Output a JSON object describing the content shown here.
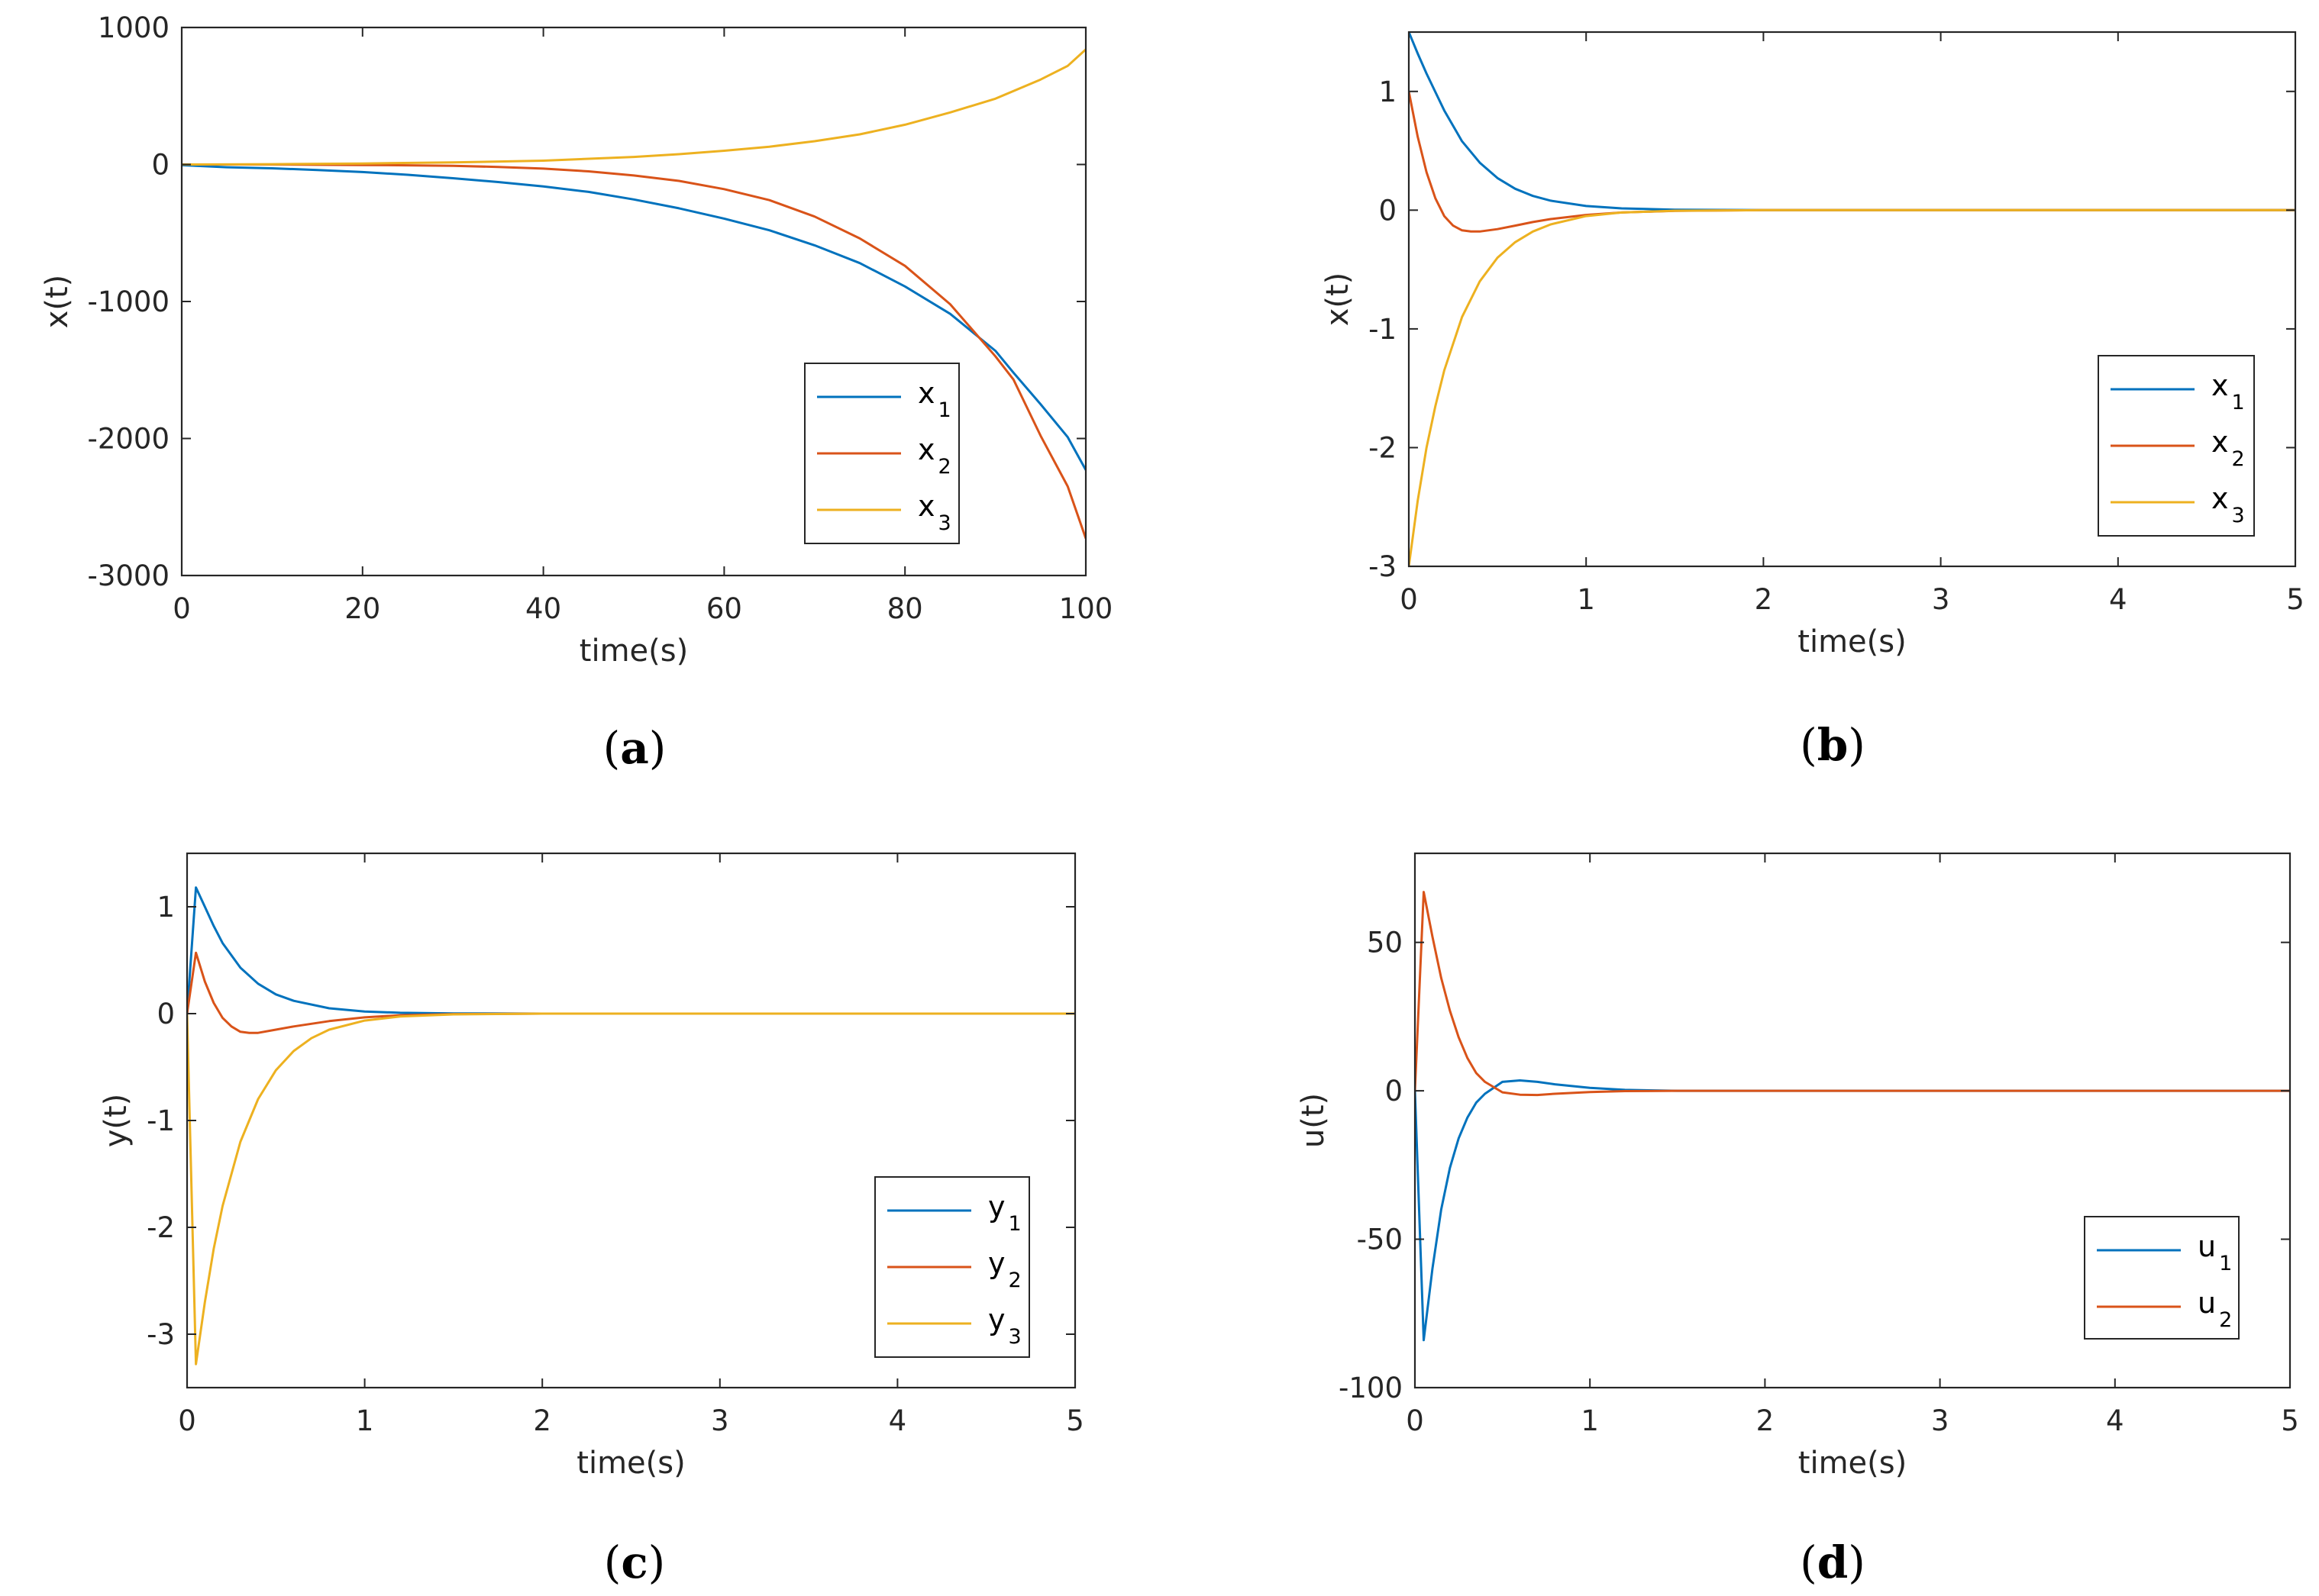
{
  "colors": {
    "series1": "#0072BD",
    "series2": "#D95319",
    "series3": "#EDB120",
    "axis": "#262626"
  },
  "chart_data": [
    {
      "id": "a",
      "type": "line",
      "caption": {
        "open": "(",
        "letter": "a",
        "close": ")"
      },
      "xlabel": "time(s)",
      "ylabel": "x(t)",
      "xlim": [
        0,
        100
      ],
      "ylim": [
        -3000,
        1000
      ],
      "xticks": [
        0,
        20,
        40,
        60,
        80,
        100
      ],
      "xtick_labels": [
        "0",
        "20",
        "40",
        "60",
        "80",
        "100"
      ],
      "yticks": [
        -3000,
        -2000,
        -1000,
        0,
        1000
      ],
      "ytick_labels": [
        "-3000",
        "-2000",
        "-1000",
        "0",
        "1000"
      ],
      "legend_position": "lower-right",
      "series": [
        {
          "name": "x",
          "sub": "1",
          "x": [
            0,
            5,
            10,
            15,
            20,
            25,
            30,
            35,
            40,
            45,
            50,
            55,
            60,
            65,
            70,
            75,
            80,
            85,
            90,
            92,
            95,
            98,
            100
          ],
          "y": [
            -5,
            -20,
            -28,
            -40,
            -55,
            -75,
            -100,
            -128,
            -160,
            -200,
            -255,
            -320,
            -395,
            -480,
            -590,
            -720,
            -890,
            -1090,
            -1360,
            -1520,
            -1750,
            -1990,
            -2230
          ]
        },
        {
          "name": "x",
          "sub": "2",
          "x": [
            0,
            5,
            10,
            15,
            20,
            25,
            30,
            35,
            40,
            45,
            50,
            55,
            60,
            65,
            70,
            75,
            80,
            85,
            90,
            92,
            95,
            98,
            100
          ],
          "y": [
            0,
            0,
            0,
            -2,
            -4,
            -6,
            -10,
            -18,
            -30,
            -50,
            -80,
            -120,
            -180,
            -260,
            -380,
            -540,
            -740,
            -1020,
            -1400,
            -1570,
            -1980,
            -2350,
            -2730
          ]
        },
        {
          "name": "x",
          "sub": "3",
          "x": [
            0,
            10,
            20,
            30,
            40,
            50,
            55,
            60,
            65,
            70,
            75,
            80,
            85,
            90,
            95,
            98,
            100
          ],
          "y": [
            0,
            2,
            7,
            15,
            28,
            55,
            75,
            100,
            130,
            170,
            220,
            290,
            380,
            480,
            620,
            720,
            840
          ]
        }
      ]
    },
    {
      "id": "b",
      "type": "line",
      "caption": {
        "open": "(",
        "letter": "b",
        "close": ")"
      },
      "xlabel": "time(s)",
      "ylabel": "x(t)",
      "xlim": [
        0,
        5
      ],
      "ylim": [
        -3,
        1.5
      ],
      "xticks": [
        0,
        1,
        2,
        3,
        4,
        5
      ],
      "xtick_labels": [
        "0",
        "1",
        "2",
        "3",
        "4",
        "5"
      ],
      "yticks": [
        -3,
        -2,
        -1,
        0,
        1
      ],
      "ytick_labels": [
        "-3",
        "-2",
        "-1",
        "0",
        "1"
      ],
      "legend_position": "lower-right",
      "series": [
        {
          "name": "x",
          "sub": "1",
          "x": [
            0,
            0.05,
            0.1,
            0.2,
            0.3,
            0.4,
            0.5,
            0.6,
            0.7,
            0.8,
            1.0,
            1.2,
            1.5,
            2.0,
            5.0
          ],
          "y": [
            1.5,
            1.32,
            1.15,
            0.84,
            0.58,
            0.4,
            0.27,
            0.18,
            0.12,
            0.08,
            0.035,
            0.015,
            0.004,
            0,
            0
          ]
        },
        {
          "name": "x",
          "sub": "2",
          "x": [
            0,
            0.05,
            0.1,
            0.15,
            0.2,
            0.25,
            0.3,
            0.35,
            0.4,
            0.5,
            0.6,
            0.7,
            0.8,
            1.0,
            1.2,
            1.5,
            2.0,
            5.0
          ],
          "y": [
            1.0,
            0.62,
            0.32,
            0.1,
            -0.05,
            -0.13,
            -0.17,
            -0.18,
            -0.18,
            -0.16,
            -0.13,
            -0.1,
            -0.075,
            -0.04,
            -0.02,
            -0.006,
            0,
            0
          ]
        },
        {
          "name": "x",
          "sub": "3",
          "x": [
            0,
            0.05,
            0.1,
            0.15,
            0.2,
            0.3,
            0.4,
            0.5,
            0.6,
            0.7,
            0.8,
            1.0,
            1.2,
            1.5,
            2.0,
            5.0
          ],
          "y": [
            -3.0,
            -2.45,
            -2.0,
            -1.65,
            -1.35,
            -0.9,
            -0.6,
            -0.4,
            -0.27,
            -0.18,
            -0.12,
            -0.05,
            -0.02,
            -0.005,
            0,
            0
          ]
        }
      ]
    },
    {
      "id": "c",
      "type": "line",
      "caption": {
        "open": "(",
        "letter": "c",
        "close": ")"
      },
      "xlabel": "time(s)",
      "ylabel": "y(t)",
      "xlim": [
        0,
        5
      ],
      "ylim": [
        -3.5,
        1.5
      ],
      "xticks": [
        0,
        1,
        2,
        3,
        4,
        5
      ],
      "xtick_labels": [
        "0",
        "1",
        "2",
        "3",
        "4",
        "5"
      ],
      "yticks": [
        -3,
        -2,
        -1,
        0,
        1
      ],
      "ytick_labels": [
        "-3",
        "-2",
        "-1",
        "0",
        "1"
      ],
      "legend_position": "lower-right",
      "series": [
        {
          "name": "y",
          "sub": "1",
          "x": [
            0,
            0.05,
            0.1,
            0.15,
            0.2,
            0.3,
            0.4,
            0.5,
            0.6,
            0.8,
            1.0,
            1.2,
            1.5,
            2.0,
            5.0
          ],
          "y": [
            0,
            1.18,
            1.0,
            0.82,
            0.66,
            0.43,
            0.28,
            0.18,
            0.12,
            0.05,
            0.02,
            0.008,
            0.002,
            0,
            0
          ]
        },
        {
          "name": "y",
          "sub": "2",
          "x": [
            0,
            0.05,
            0.1,
            0.15,
            0.2,
            0.25,
            0.3,
            0.35,
            0.4,
            0.5,
            0.6,
            0.8,
            1.0,
            1.2,
            1.5,
            2.0,
            5.0
          ],
          "y": [
            0,
            0.57,
            0.3,
            0.1,
            -0.04,
            -0.12,
            -0.17,
            -0.18,
            -0.18,
            -0.15,
            -0.12,
            -0.07,
            -0.035,
            -0.015,
            -0.004,
            0,
            0
          ]
        },
        {
          "name": "y",
          "sub": "3",
          "x": [
            0,
            0.05,
            0.1,
            0.15,
            0.2,
            0.3,
            0.4,
            0.5,
            0.6,
            0.7,
            0.8,
            1.0,
            1.2,
            1.5,
            2.0,
            5.0
          ],
          "y": [
            0,
            -3.28,
            -2.7,
            -2.2,
            -1.8,
            -1.2,
            -0.8,
            -0.53,
            -0.35,
            -0.23,
            -0.15,
            -0.065,
            -0.027,
            -0.007,
            0,
            0
          ]
        }
      ]
    },
    {
      "id": "d",
      "type": "line",
      "caption": {
        "open": "(",
        "letter": "d",
        "close": ")"
      },
      "xlabel": "time(s)",
      "ylabel": "u(t)",
      "xlim": [
        0,
        5
      ],
      "ylim": [
        -100,
        80
      ],
      "xticks": [
        0,
        1,
        2,
        3,
        4,
        5
      ],
      "xtick_labels": [
        "0",
        "1",
        "2",
        "3",
        "4",
        "5"
      ],
      "yticks": [
        -100,
        -50,
        0,
        50
      ],
      "ytick_labels": [
        "-100",
        "-50",
        "0",
        "50"
      ],
      "legend_position": "lower-right",
      "series": [
        {
          "name": "u",
          "sub": "1",
          "x": [
            0,
            0.05,
            0.1,
            0.15,
            0.2,
            0.25,
            0.3,
            0.35,
            0.4,
            0.5,
            0.6,
            0.7,
            0.8,
            1.0,
            1.2,
            1.5,
            2.0,
            5.0
          ],
          "y": [
            0,
            -84,
            -60,
            -40,
            -26,
            -16,
            -9,
            -4,
            -1,
            3,
            3.5,
            3,
            2.2,
            1,
            0.3,
            0,
            0,
            0
          ]
        },
        {
          "name": "u",
          "sub": "2",
          "x": [
            0,
            0.05,
            0.1,
            0.15,
            0.2,
            0.25,
            0.3,
            0.35,
            0.4,
            0.5,
            0.6,
            0.7,
            0.8,
            1.0,
            1.2,
            1.5,
            2.0,
            5.0
          ],
          "y": [
            0,
            67,
            52,
            38,
            27,
            18,
            11,
            6,
            3,
            -0.5,
            -1.3,
            -1.4,
            -1.0,
            -0.4,
            -0.1,
            0,
            0,
            0
          ]
        }
      ]
    }
  ]
}
